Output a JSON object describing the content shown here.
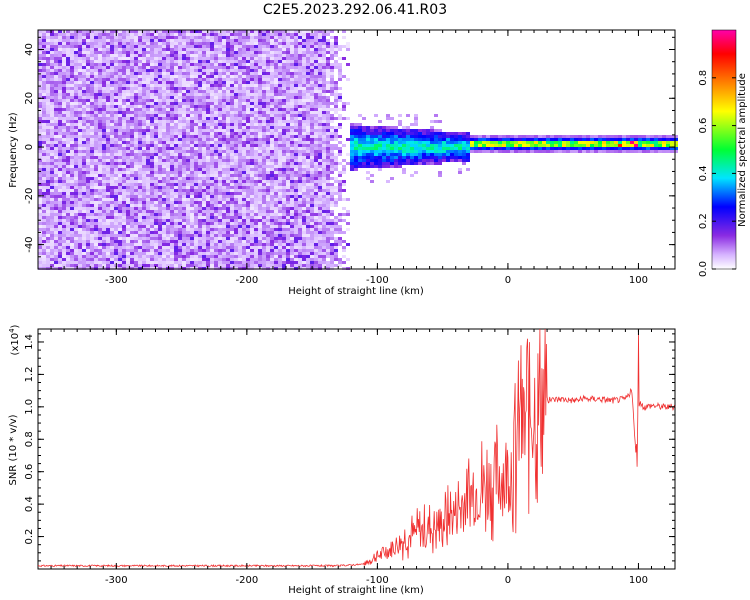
{
  "title": "C2E5.2023.292.06.41.R03",
  "chart_data": [
    {
      "type": "heatmap",
      "xlabel": "Height of straight line (km)",
      "ylabel": "Frequency (Hz)",
      "xlim": [
        -360,
        128
      ],
      "ylim": [
        -50,
        48
      ],
      "xticks": [
        -300,
        -200,
        -100,
        0,
        100
      ],
      "yticks": [
        -40,
        -20,
        0,
        20,
        40
      ],
      "colorbar": {
        "label": "Normalized spectral amplitude",
        "range": [
          0,
          1
        ],
        "ticks": [
          0.0,
          0.2,
          0.4,
          0.6,
          0.8
        ],
        "colormap": [
          "#ffffff",
          "#d6b3ff",
          "#8a2be2",
          "#0000ff",
          "#00e5ff",
          "#00ff33",
          "#ffff00",
          "#ff8000",
          "#ff0000",
          "#ff00aa"
        ]
      },
      "regions": [
        {
          "x_range": [
            -360,
            -120
          ],
          "freq_range": [
            -50,
            48
          ],
          "amplitude": [
            0.0,
            0.15
          ],
          "note": "broadband noise"
        },
        {
          "x_range": [
            -135,
            -30
          ],
          "freq_range": [
            -10,
            8
          ],
          "amplitude": [
            0.1,
            0.45
          ]
        },
        {
          "x_range": [
            -30,
            128
          ],
          "freq_range": [
            -3,
            4
          ],
          "amplitude": [
            0.3,
            0.9
          ],
          "note": "signal band near 0 Hz"
        }
      ]
    },
    {
      "type": "line",
      "xlabel": "Height of straight line (km)",
      "ylabel": "SNR (10 * v/v)",
      "y_multiplier_label": "(x10",
      "y_multiplier_exp": "4",
      "y_multiplier_close": ")",
      "xlim": [
        -360,
        128
      ],
      "ylim": [
        0,
        1.48
      ],
      "xticks": [
        -300,
        -200,
        -100,
        0,
        100
      ],
      "yticks": [
        0.2,
        0.4,
        0.6,
        0.8,
        1.0,
        1.2,
        1.4
      ],
      "series": [
        {
          "color": "#f03030",
          "x": [
            -360,
            -300,
            -200,
            -130,
            -110,
            -100,
            -90,
            -80,
            -70,
            -60,
            -50,
            -40,
            -30,
            -20,
            -10,
            0,
            5,
            8,
            10,
            15,
            20,
            25,
            30,
            40,
            50,
            60,
            70,
            80,
            90,
            95,
            98,
            100,
            105,
            110,
            120,
            128
          ],
          "values": [
            0.02,
            0.02,
            0.02,
            0.02,
            0.03,
            0.08,
            0.12,
            0.18,
            0.22,
            0.25,
            0.28,
            0.35,
            0.45,
            0.5,
            0.55,
            0.6,
            0.7,
            0.9,
            0.8,
            0.95,
            1.0,
            1.02,
            1.04,
            1.05,
            1.04,
            1.05,
            1.05,
            1.04,
            1.05,
            1.1,
            0.7,
            1.02,
            1.0,
            1.01,
            1.0,
            1.0
          ]
        }
      ],
      "spikes": [
        {
          "x": 10,
          "value": 1.38
        },
        {
          "x": 100,
          "value": 1.46
        },
        {
          "x": 99,
          "value": 0.63
        },
        {
          "x": 6,
          "value": 0.22
        }
      ]
    }
  ]
}
